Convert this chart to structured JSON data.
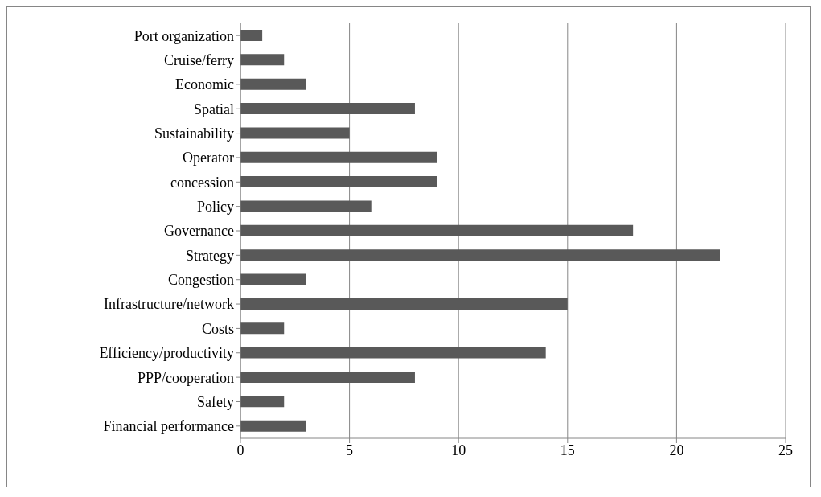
{
  "chart_data": {
    "type": "bar",
    "orientation": "horizontal",
    "categories": [
      "Port organization",
      "Cruise/ferry",
      "Economic",
      "Spatial",
      "Sustainability",
      "Operator",
      "concession",
      "Policy",
      "Governance",
      "Strategy",
      "Congestion",
      "Infrastructure/network",
      "Costs",
      "Efficiency/productivity",
      "PPP/cooperation",
      "Safety",
      "Financial performance"
    ],
    "values": [
      1,
      2,
      3,
      8,
      5,
      9,
      9,
      6,
      18,
      22,
      3,
      15,
      2,
      14,
      8,
      2,
      3
    ],
    "color": "#595959",
    "xlim": [
      0,
      25
    ],
    "xticks": [
      0,
      5,
      10,
      15,
      20,
      25
    ],
    "grid": "x",
    "legend": false
  }
}
